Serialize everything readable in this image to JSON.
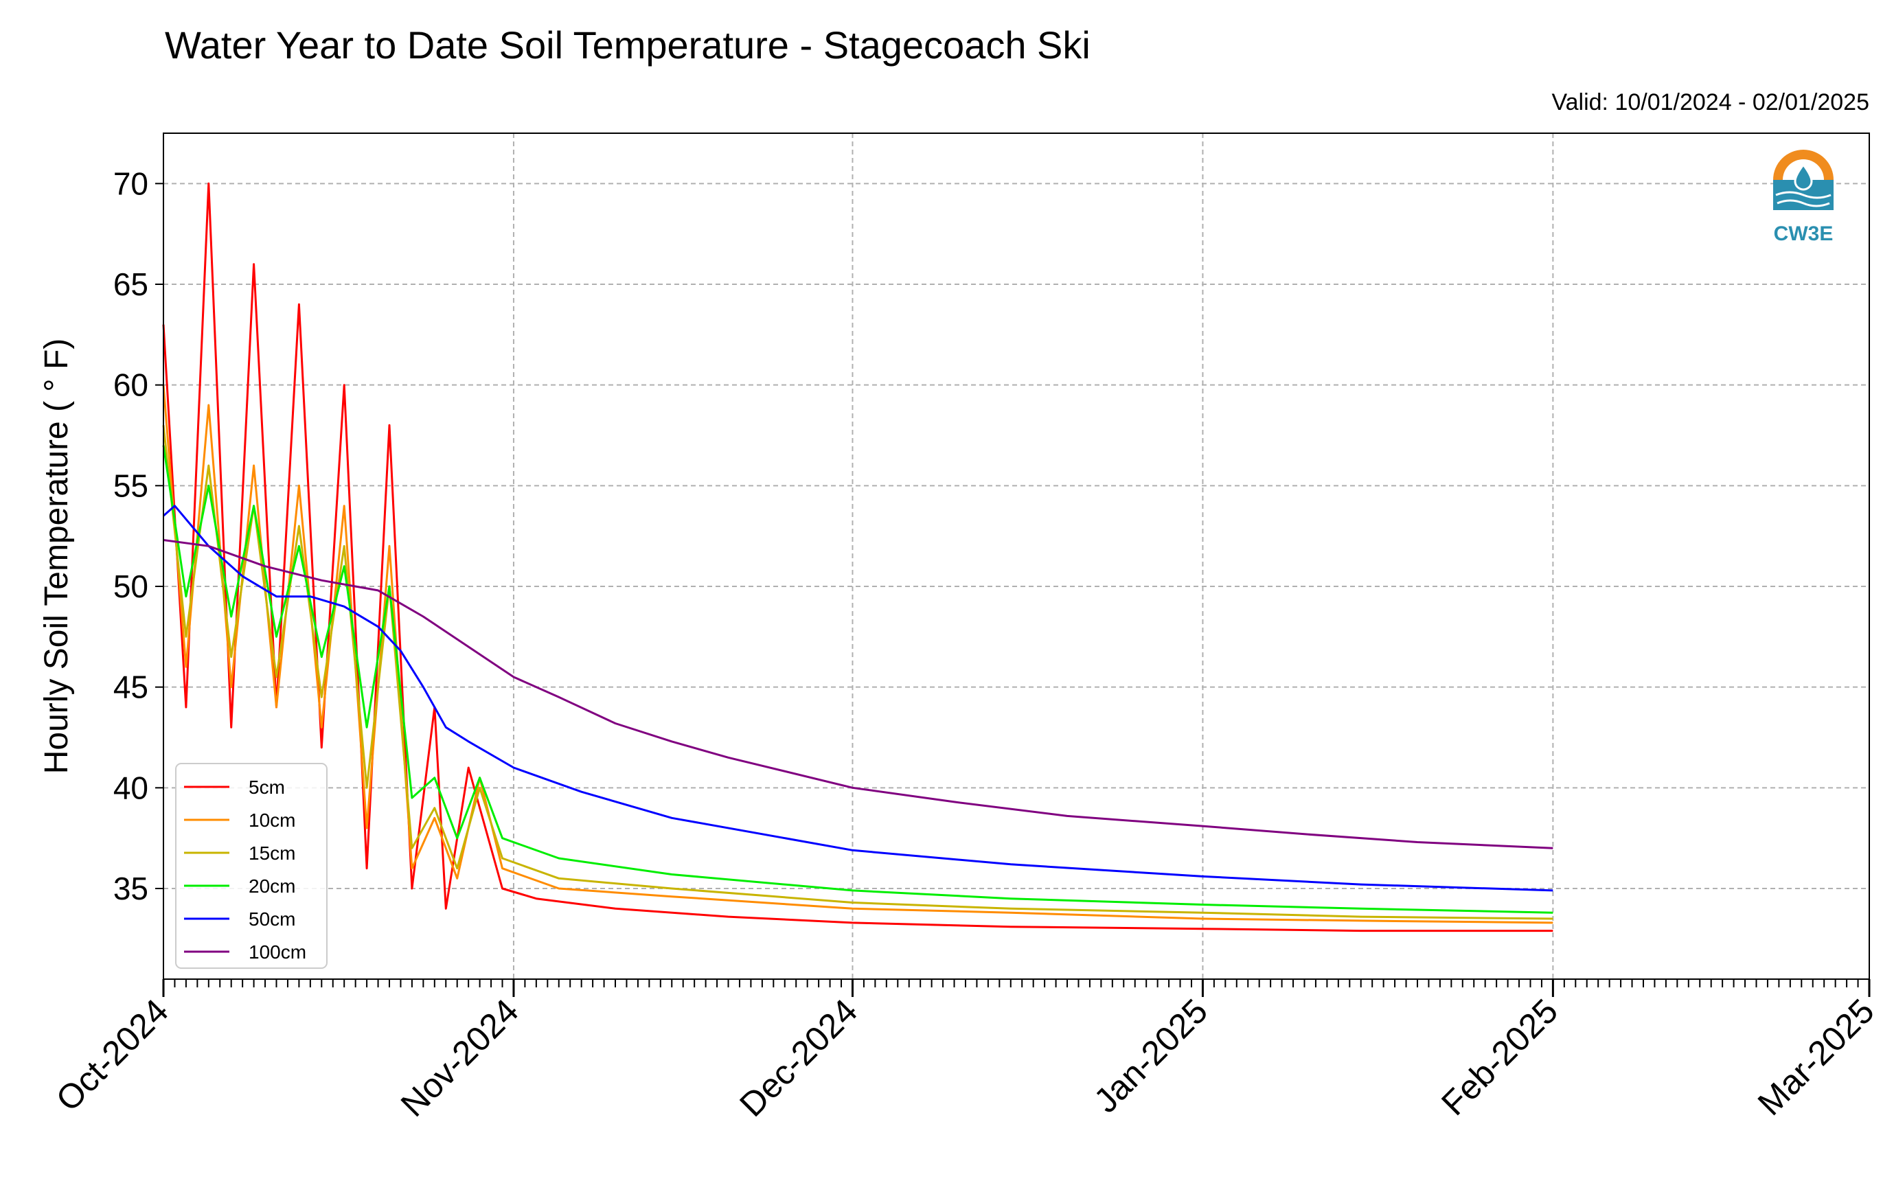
{
  "chart_data": {
    "type": "line",
    "title": "Water Year to Date Soil Temperature - Stagecoach Ski",
    "subtitle": "Valid: 10/01/2024 - 02/01/2025",
    "xlabel": "",
    "ylabel": "Hourly Soil Temperature ( ° F)",
    "xlim": [
      "2024-10-01",
      "2025-03-01"
    ],
    "ylim": [
      30.5,
      72.5
    ],
    "x_ticks": [
      "Oct-2024",
      "Nov-2024",
      "Dec-2024",
      "Jan-2025",
      "Feb-2025",
      "Mar-2025"
    ],
    "y_ticks": [
      35,
      40,
      45,
      50,
      55,
      60,
      65,
      70
    ],
    "grid": true,
    "legend_position": "lower-left",
    "series": [
      {
        "name": "5cm",
        "color": "#ff0000",
        "x": [
          "2024-10-01",
          "2024-10-03",
          "2024-10-05",
          "2024-10-07",
          "2024-10-09",
          "2024-10-11",
          "2024-10-13",
          "2024-10-15",
          "2024-10-17",
          "2024-10-19",
          "2024-10-21",
          "2024-10-23",
          "2024-10-25",
          "2024-10-26",
          "2024-10-28",
          "2024-10-31",
          "2024-11-03",
          "2024-11-10",
          "2024-11-20",
          "2024-12-01",
          "2024-12-15",
          "2025-01-01",
          "2025-01-15",
          "2025-02-01"
        ],
        "y": [
          63.0,
          44.0,
          70.0,
          43.0,
          66.0,
          44.0,
          64.0,
          42.0,
          60.0,
          36.0,
          58.0,
          35.0,
          44.0,
          34.0,
          41.0,
          35.0,
          34.5,
          34.0,
          33.6,
          33.3,
          33.1,
          33.0,
          32.9,
          32.9
        ]
      },
      {
        "name": "10cm",
        "color": "#ff8c00",
        "x": [
          "2024-10-01",
          "2024-10-03",
          "2024-10-05",
          "2024-10-07",
          "2024-10-09",
          "2024-10-11",
          "2024-10-13",
          "2024-10-15",
          "2024-10-17",
          "2024-10-19",
          "2024-10-21",
          "2024-10-23",
          "2024-10-25",
          "2024-10-27",
          "2024-10-29",
          "2024-10-31",
          "2024-11-05",
          "2024-11-15",
          "2024-12-01",
          "2024-12-15",
          "2025-01-01",
          "2025-01-15",
          "2025-02-01"
        ],
        "y": [
          60.0,
          46.0,
          59.0,
          45.0,
          56.0,
          44.0,
          55.0,
          43.0,
          54.0,
          38.0,
          52.0,
          36.0,
          38.5,
          35.5,
          40.5,
          36.0,
          35.0,
          34.6,
          34.0,
          33.8,
          33.5,
          33.4,
          33.3
        ]
      },
      {
        "name": "15cm",
        "color": "#c8b400",
        "x": [
          "2024-10-01",
          "2024-10-03",
          "2024-10-05",
          "2024-10-07",
          "2024-10-09",
          "2024-10-11",
          "2024-10-13",
          "2024-10-15",
          "2024-10-17",
          "2024-10-19",
          "2024-10-21",
          "2024-10-23",
          "2024-10-25",
          "2024-10-27",
          "2024-10-29",
          "2024-10-31",
          "2024-11-05",
          "2024-11-15",
          "2024-12-01",
          "2024-12-15",
          "2025-01-01",
          "2025-01-15",
          "2025-02-01"
        ],
        "y": [
          58.0,
          47.5,
          56.0,
          46.5,
          54.0,
          45.5,
          53.0,
          44.5,
          52.0,
          40.0,
          50.0,
          37.0,
          39.0,
          36.0,
          40.0,
          36.5,
          35.5,
          35.0,
          34.3,
          34.0,
          33.8,
          33.6,
          33.5
        ]
      },
      {
        "name": "20cm",
        "color": "#00ee00",
        "x": [
          "2024-10-01",
          "2024-10-03",
          "2024-10-05",
          "2024-10-07",
          "2024-10-09",
          "2024-10-11",
          "2024-10-13",
          "2024-10-15",
          "2024-10-17",
          "2024-10-19",
          "2024-10-21",
          "2024-10-23",
          "2024-10-25",
          "2024-10-27",
          "2024-10-29",
          "2024-10-31",
          "2024-11-05",
          "2024-11-15",
          "2024-12-01",
          "2024-12-15",
          "2025-01-01",
          "2025-01-15",
          "2025-02-01"
        ],
        "y": [
          57.0,
          49.5,
          55.0,
          48.5,
          54.0,
          47.5,
          52.0,
          46.5,
          51.0,
          43.0,
          50.0,
          39.5,
          40.5,
          37.5,
          40.5,
          37.5,
          36.5,
          35.7,
          34.9,
          34.5,
          34.2,
          34.0,
          33.8
        ]
      },
      {
        "name": "50cm",
        "color": "#0000ff",
        "x": [
          "2024-10-01",
          "2024-10-02",
          "2024-10-05",
          "2024-10-08",
          "2024-10-11",
          "2024-10-14",
          "2024-10-17",
          "2024-10-20",
          "2024-10-22",
          "2024-10-24",
          "2024-10-26",
          "2024-10-28",
          "2024-11-01",
          "2024-11-07",
          "2024-11-15",
          "2024-12-01",
          "2024-12-15",
          "2025-01-01",
          "2025-01-15",
          "2025-02-01"
        ],
        "y": [
          53.5,
          54.0,
          52.0,
          50.5,
          49.5,
          49.5,
          49.0,
          48.0,
          46.8,
          45.0,
          43.0,
          42.3,
          41.0,
          39.8,
          38.5,
          36.9,
          36.2,
          35.6,
          35.2,
          34.9
        ]
      },
      {
        "name": "100cm",
        "color": "#800080",
        "x": [
          "2024-10-01",
          "2024-10-05",
          "2024-10-10",
          "2024-10-15",
          "2024-10-20",
          "2024-10-24",
          "2024-10-28",
          "2024-11-01",
          "2024-11-05",
          "2024-11-10",
          "2024-11-15",
          "2024-11-20",
          "2024-12-01",
          "2024-12-10",
          "2024-12-20",
          "2025-01-01",
          "2025-01-10",
          "2025-01-20",
          "2025-02-01"
        ],
        "y": [
          52.3,
          52.0,
          51.0,
          50.3,
          49.8,
          48.5,
          47.0,
          45.5,
          44.5,
          43.2,
          42.3,
          41.5,
          40.0,
          39.3,
          38.6,
          38.1,
          37.7,
          37.3,
          37.0
        ]
      }
    ]
  },
  "logo": {
    "text": "CW3E",
    "orange": "#f08c1e",
    "blue": "#2a8fb0"
  }
}
